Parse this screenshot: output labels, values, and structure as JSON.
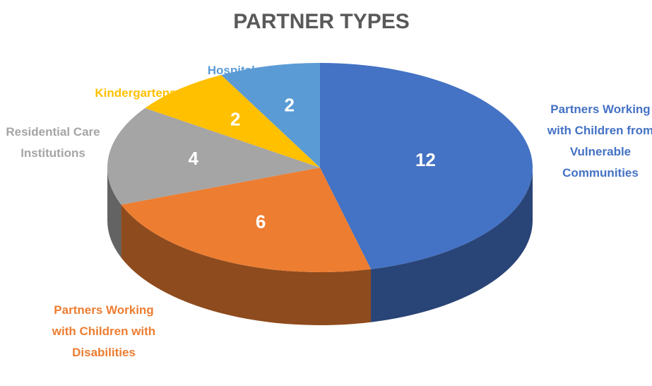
{
  "chart_data": {
    "type": "pie",
    "title": "PARTNER TYPES",
    "categories": [
      "Partners Working with Children from Vulnerable Communities",
      "Partners Working with Children with Disabilities",
      "Residential Care Institutions",
      "Kindergartens",
      "Hospitals"
    ],
    "values": [
      12,
      6,
      4,
      2,
      2
    ],
    "colors": [
      "#4472c4",
      "#ed7d31",
      "#a5a5a5",
      "#ffc000",
      "#5b9bd5"
    ]
  }
}
